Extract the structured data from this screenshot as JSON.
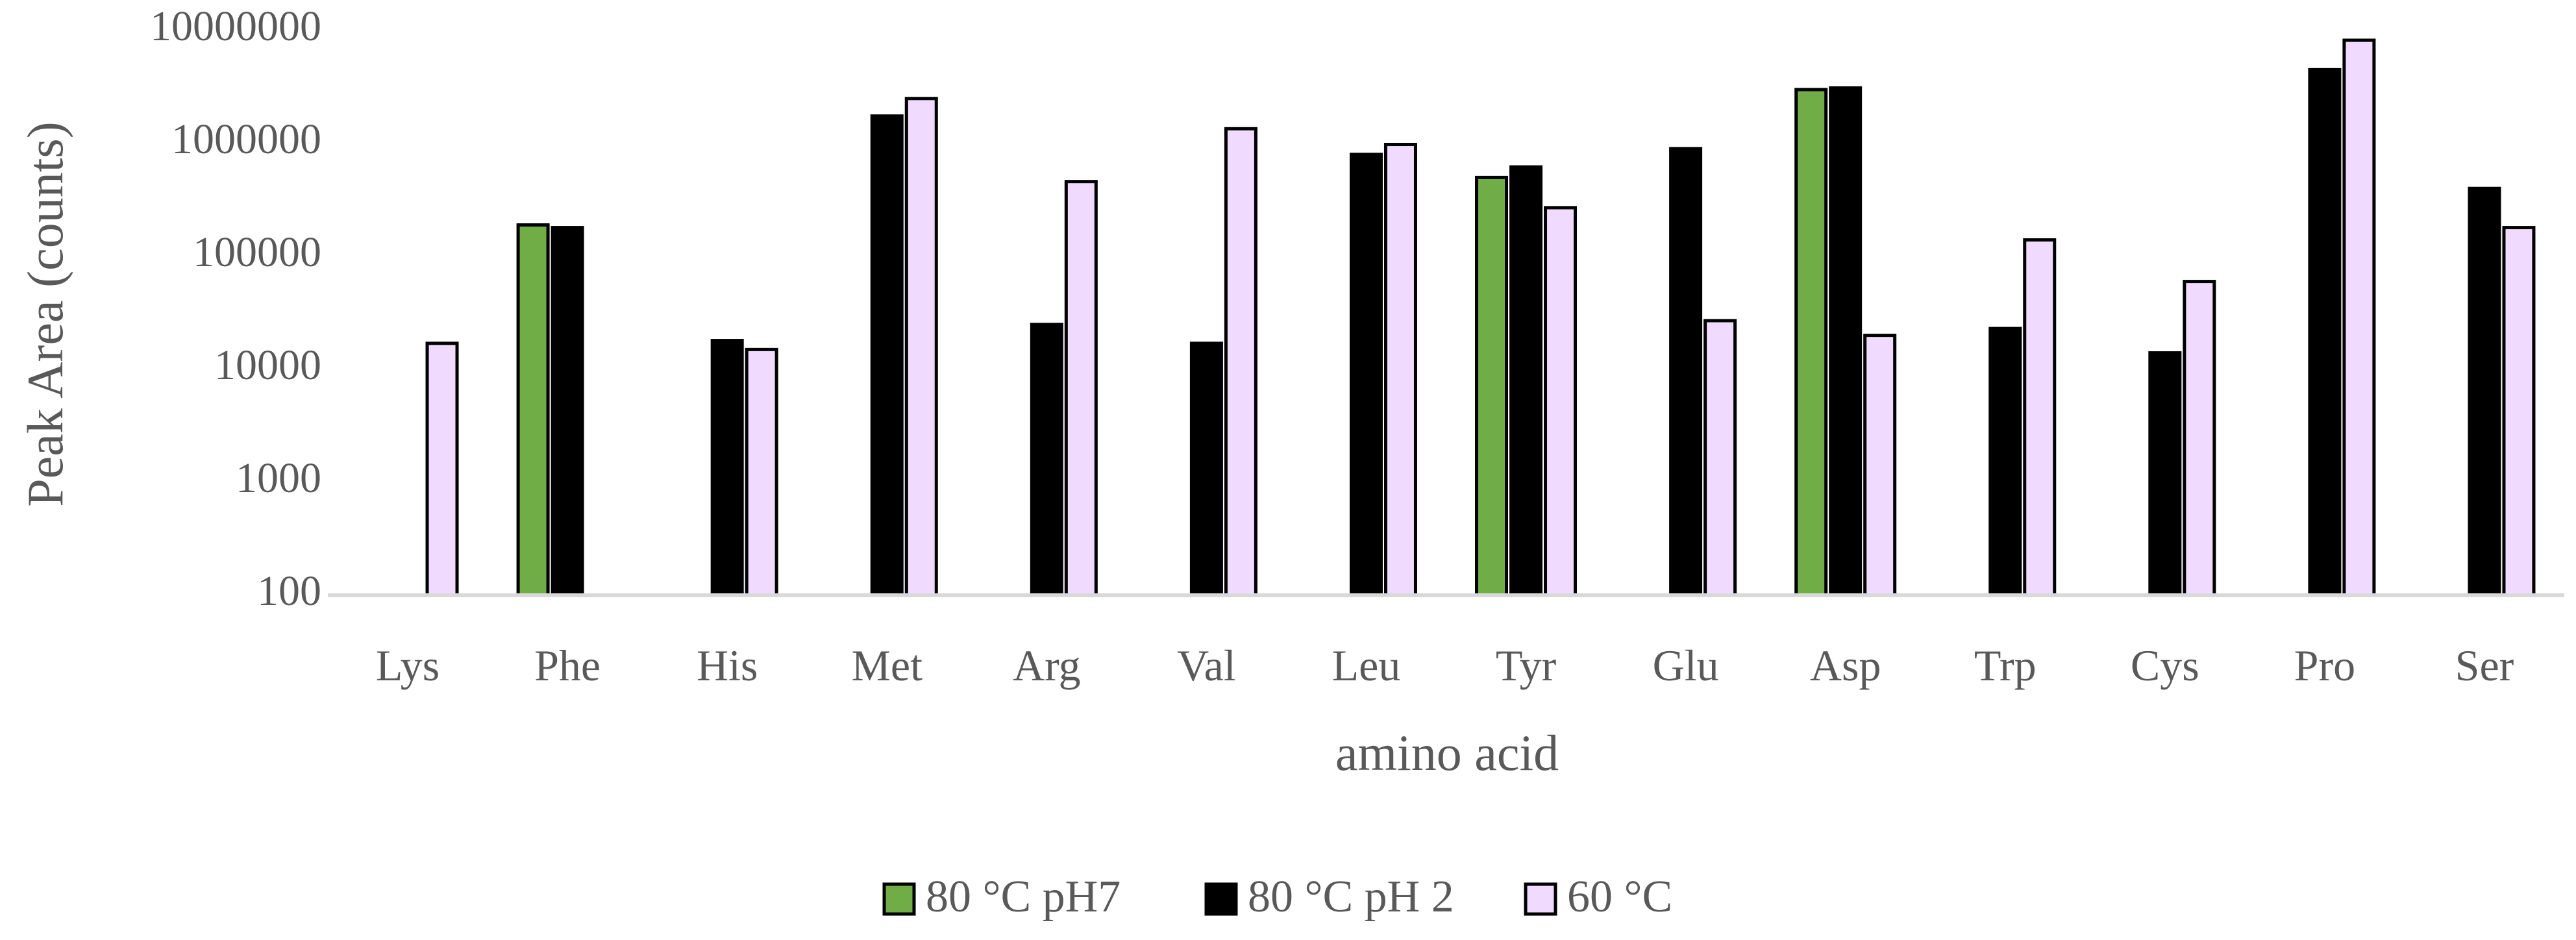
{
  "chart_data": {
    "type": "bar",
    "scale": "log",
    "title": "",
    "xlabel": "amino acid",
    "ylabel": "Peak Area (counts)",
    "ylim": [
      100,
      10000000
    ],
    "yticks": [
      "100",
      "1000",
      "10000",
      "100000",
      "1000000",
      "10000000"
    ],
    "categories": [
      "Lys",
      "Phe",
      "His",
      "Met",
      "Arg",
      "Val",
      "Leu",
      "Tyr",
      "Glu",
      "Asp",
      "Trp",
      "Cys",
      "Pro",
      "Ser"
    ],
    "series": [
      {
        "name": "80 °C pH7",
        "color": "#70ad47",
        "values": [
          null,
          190000,
          null,
          null,
          null,
          null,
          null,
          500000,
          null,
          3000000,
          null,
          null,
          null,
          null
        ]
      },
      {
        "name": "80 °C pH 2",
        "color": "#000000",
        "values": [
          null,
          180000,
          18000,
          1750000,
          25000,
          17000,
          800000,
          620000,
          900000,
          3100000,
          23000,
          14000,
          4500000,
          400000
        ]
      },
      {
        "name": "60 °C",
        "color": "#f0dbff",
        "values": [
          17000,
          null,
          15000,
          2500000,
          460000,
          1350000,
          980000,
          270000,
          27000,
          20000,
          140000,
          60000,
          8200000,
          180000
        ]
      }
    ],
    "legend": {
      "position": "bottom-center",
      "entries": [
        "80 °C pH7",
        "80 °C pH 2",
        "60 °C"
      ]
    },
    "grid": false
  }
}
